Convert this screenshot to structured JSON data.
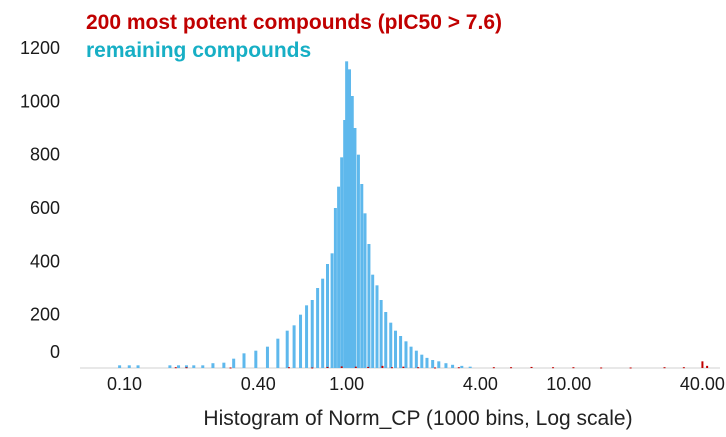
{
  "chart_data": {
    "type": "bar",
    "title": "",
    "xlabel": "Histogram of Norm_CP (1000 bins, Log scale)",
    "ylabel": "",
    "x_scale": "log",
    "xlim": [
      0.063,
      48
    ],
    "ylim": [
      0,
      1230
    ],
    "x_ticks": [
      {
        "value": 0.1,
        "label": "0.10"
      },
      {
        "value": 0.4,
        "label": "0.40"
      },
      {
        "value": 1.0,
        "label": "1.00"
      },
      {
        "value": 4.0,
        "label": "4.00"
      },
      {
        "value": 10.0,
        "label": "10.00"
      },
      {
        "value": 40.0,
        "label": "40.00"
      }
    ],
    "y_ticks": [
      {
        "value": 0,
        "label": "0"
      },
      {
        "value": 200,
        "label": "200"
      },
      {
        "value": 400,
        "label": "400"
      },
      {
        "value": 600,
        "label": "600"
      },
      {
        "value": 800,
        "label": "800"
      },
      {
        "value": 1000,
        "label": "1000"
      },
      {
        "value": 1200,
        "label": "1200"
      }
    ],
    "grid": false,
    "legend_position": "top-left",
    "series": [
      {
        "name": "200 most potent compounds (pIC50 > 7.6)",
        "color": "#c00000",
        "x": [
          0.17,
          0.19,
          0.3,
          0.55,
          0.7,
          0.82,
          0.95,
          1.1,
          1.25,
          1.45,
          1.6,
          1.8,
          2.1,
          2.5,
          3.2,
          4.6,
          5.5,
          6.8,
          8.5,
          10.5,
          14,
          19,
          27,
          33,
          40,
          42
        ],
        "values": [
          3,
          3,
          2,
          3,
          2,
          4,
          6,
          5,
          4,
          8,
          3,
          5,
          3,
          2,
          3,
          3,
          3,
          4,
          3,
          3,
          2,
          2,
          3,
          3,
          25,
          8
        ]
      },
      {
        "name": "remaining compounds",
        "color": "#5eb8ec",
        "x": [
          0.095,
          0.105,
          0.115,
          0.16,
          0.175,
          0.19,
          0.205,
          0.225,
          0.25,
          0.28,
          0.31,
          0.345,
          0.39,
          0.44,
          0.49,
          0.54,
          0.58,
          0.62,
          0.66,
          0.7,
          0.74,
          0.78,
          0.82,
          0.86,
          0.89,
          0.92,
          0.95,
          0.98,
          1.0,
          1.03,
          1.06,
          1.09,
          1.13,
          1.17,
          1.21,
          1.26,
          1.31,
          1.37,
          1.43,
          1.5,
          1.58,
          1.66,
          1.75,
          1.85,
          1.95,
          2.06,
          2.18,
          2.3,
          2.44,
          2.6,
          2.8,
          3.0,
          3.3,
          3.6
        ],
        "values": [
          10,
          10,
          10,
          10,
          10,
          10,
          10,
          10,
          18,
          20,
          35,
          55,
          65,
          80,
          110,
          140,
          160,
          200,
          235,
          255,
          300,
          335,
          390,
          430,
          600,
          680,
          790,
          930,
          1150,
          1120,
          1020,
          900,
          800,
          690,
          580,
          465,
          350,
          310,
          255,
          210,
          170,
          140,
          120,
          100,
          80,
          65,
          50,
          38,
          30,
          25,
          18,
          12,
          8,
          5
        ]
      }
    ]
  }
}
